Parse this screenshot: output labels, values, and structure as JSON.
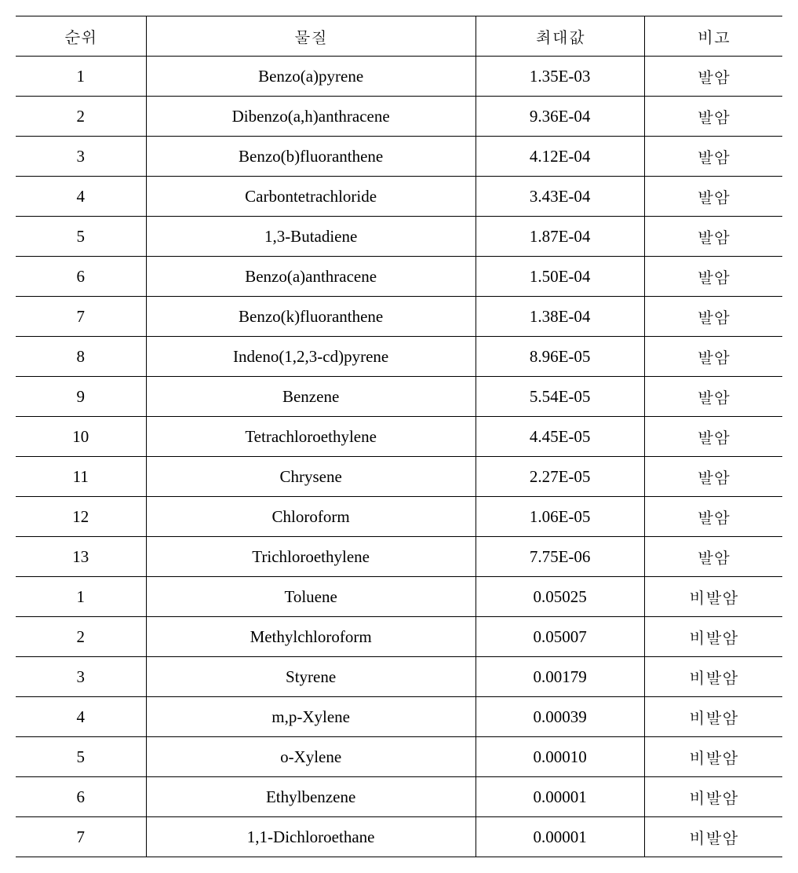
{
  "table": {
    "columns": [
      {
        "label": "순위",
        "class": "col-rank"
      },
      {
        "label": "물질",
        "class": "col-substance"
      },
      {
        "label": "최대값",
        "class": "col-max"
      },
      {
        "label": "비고",
        "class": "col-note"
      }
    ],
    "rows": [
      {
        "rank": "1",
        "substance": "Benzo(a)pyrene",
        "max": "1.35E-03",
        "note": "발암"
      },
      {
        "rank": "2",
        "substance": "Dibenzo(a,h)anthracene",
        "max": "9.36E-04",
        "note": "발암"
      },
      {
        "rank": "3",
        "substance": "Benzo(b)fluoranthene",
        "max": "4.12E-04",
        "note": "발암"
      },
      {
        "rank": "4",
        "substance": "Carbontetrachloride",
        "max": "3.43E-04",
        "note": "발암"
      },
      {
        "rank": "5",
        "substance": "1,3-Butadiene",
        "max": "1.87E-04",
        "note": "발암"
      },
      {
        "rank": "6",
        "substance": "Benzo(a)anthracene",
        "max": "1.50E-04",
        "note": "발암"
      },
      {
        "rank": "7",
        "substance": "Benzo(k)fluoranthene",
        "max": "1.38E-04",
        "note": "발암"
      },
      {
        "rank": "8",
        "substance": "Indeno(1,2,3-cd)pyrene",
        "max": "8.96E-05",
        "note": "발암"
      },
      {
        "rank": "9",
        "substance": "Benzene",
        "max": "5.54E-05",
        "note": "발암"
      },
      {
        "rank": "10",
        "substance": "Tetrachloroethylene",
        "max": "4.45E-05",
        "note": "발암"
      },
      {
        "rank": "11",
        "substance": "Chrysene",
        "max": "2.27E-05",
        "note": "발암"
      },
      {
        "rank": "12",
        "substance": "Chloroform",
        "max": "1.06E-05",
        "note": "발암"
      },
      {
        "rank": "13",
        "substance": "Trichloroethylene",
        "max": "7.75E-06",
        "note": "발암"
      },
      {
        "rank": "1",
        "substance": "Toluene",
        "max": "0.05025",
        "note": "비발암"
      },
      {
        "rank": "2",
        "substance": "Methylchloroform",
        "max": "0.05007",
        "note": "비발암"
      },
      {
        "rank": "3",
        "substance": "Styrene",
        "max": "0.00179",
        "note": "비발암"
      },
      {
        "rank": "4",
        "substance": "m,p-Xylene",
        "max": "0.00039",
        "note": "비발암"
      },
      {
        "rank": "5",
        "substance": "o-Xylene",
        "max": "0.00010",
        "note": "비발암"
      },
      {
        "rank": "6",
        "substance": "Ethylbenzene",
        "max": "0.00001",
        "note": "비발암"
      },
      {
        "rank": "7",
        "substance": "1,1-Dichloroethane",
        "max": "0.00001",
        "note": "비발암"
      }
    ]
  }
}
